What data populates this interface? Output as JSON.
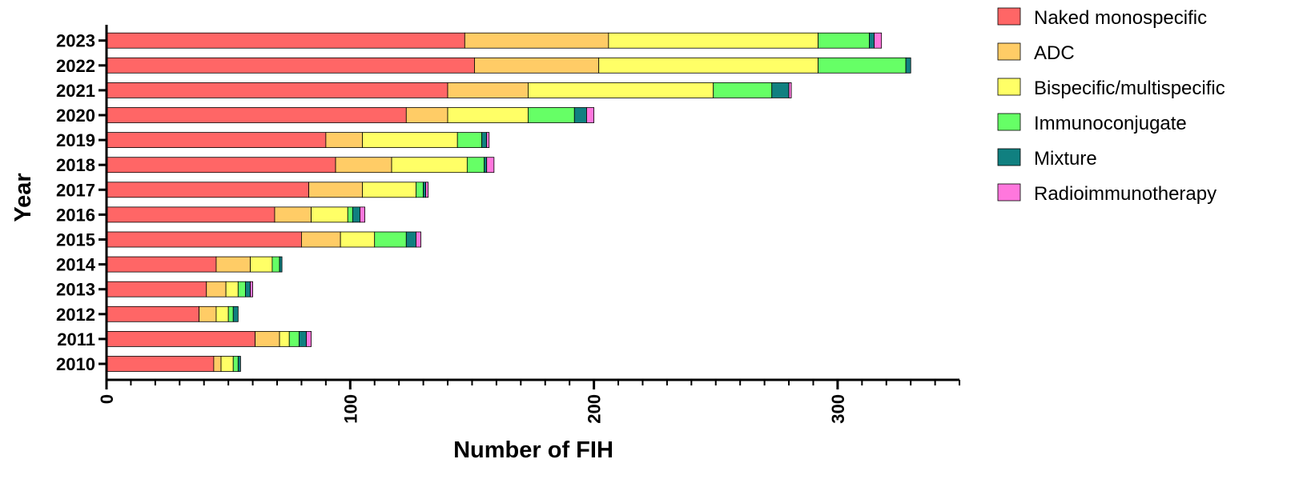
{
  "chart_data": {
    "type": "bar",
    "orientation": "horizontal",
    "stacked": true,
    "xlabel": "Number of FIH",
    "ylabel": "Year",
    "xlim": [
      0,
      350
    ],
    "x_ticks": [
      0,
      100,
      200,
      300
    ],
    "legend_position": "right",
    "grid": false,
    "categories": [
      "2010",
      "2011",
      "2012",
      "2013",
      "2014",
      "2015",
      "2016",
      "2017",
      "2018",
      "2019",
      "2020",
      "2021",
      "2022",
      "2023"
    ],
    "series": [
      {
        "name": "Naked monospecific",
        "color": "#ff6666",
        "values": [
          44,
          61,
          38,
          41,
          45,
          80,
          69,
          83,
          94,
          90,
          123,
          140,
          151,
          147
        ]
      },
      {
        "name": "ADC",
        "color": "#ffcc66",
        "values": [
          3,
          10,
          7,
          8,
          14,
          16,
          15,
          22,
          23,
          15,
          17,
          33,
          51,
          59
        ]
      },
      {
        "name": "Bispecific/multispecific",
        "color": "#ffff66",
        "values": [
          5,
          4,
          5,
          5,
          9,
          14,
          15,
          22,
          31,
          39,
          33,
          76,
          90,
          86
        ]
      },
      {
        "name": "Immunoconjugate",
        "color": "#66ff66",
        "values": [
          2,
          4,
          2,
          3,
          3,
          13,
          2,
          3,
          7,
          10,
          19,
          24,
          36,
          21
        ]
      },
      {
        "name": "Mixture",
        "color": "#108080",
        "values": [
          1,
          3,
          2,
          2,
          1,
          4,
          3,
          1,
          1,
          2,
          5,
          7,
          2,
          2
        ]
      },
      {
        "name": "Radioimmunotherapy",
        "color": "#ff77dd",
        "values": [
          0,
          2,
          0,
          1,
          0,
          2,
          2,
          1,
          3,
          1,
          3,
          1,
          0,
          3
        ]
      }
    ]
  }
}
